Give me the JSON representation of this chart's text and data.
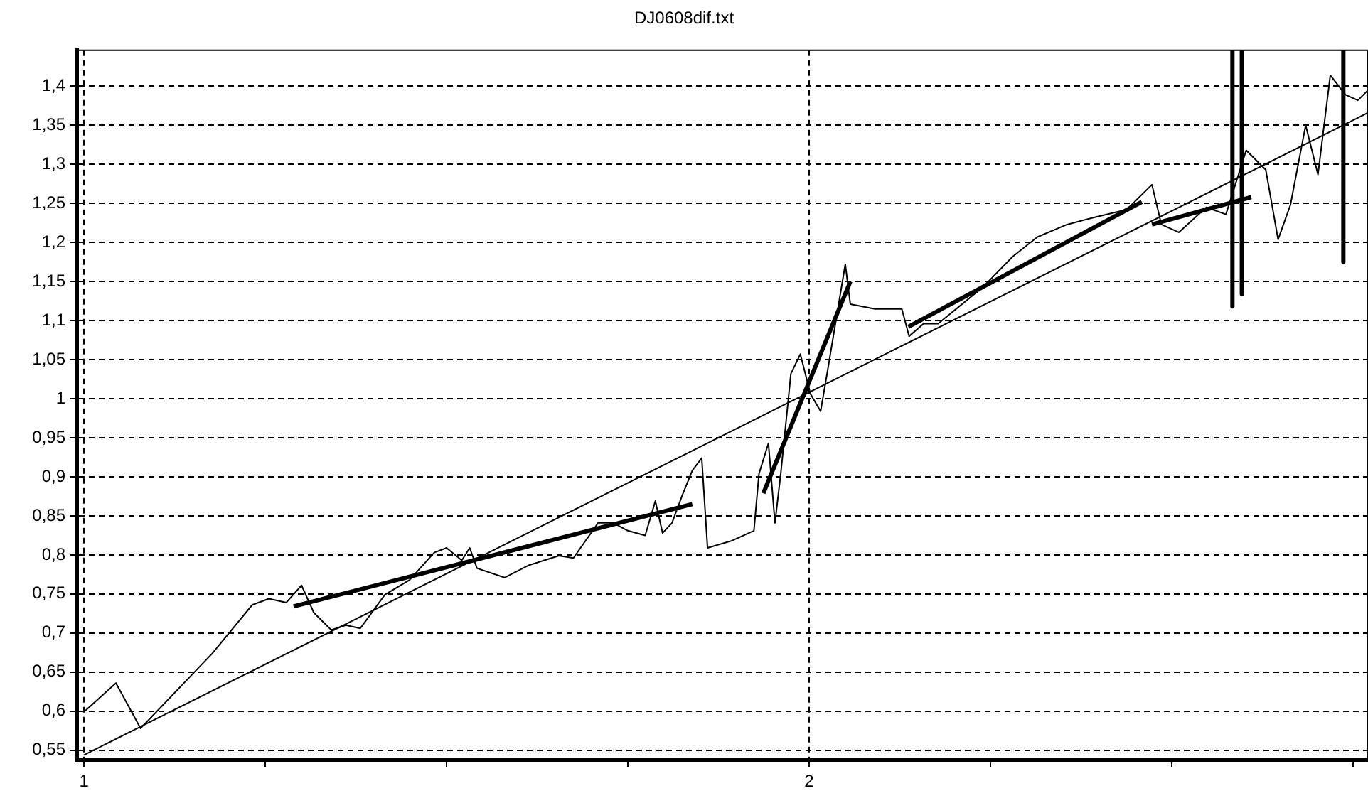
{
  "chart_data": {
    "type": "line",
    "title": "DJ0608dif.txt",
    "xlim": [
      0.99,
      2.771
    ],
    "ylim": [
      0.537,
      1.446
    ],
    "xticks": [
      1,
      {
        "value": 1.25,
        "label": null
      },
      {
        "value": 1.5,
        "label": null
      },
      {
        "value": 1.75,
        "label": null
      },
      2,
      {
        "value": 2.25,
        "label": null
      },
      {
        "value": 2.5,
        "label": null
      },
      {
        "value": 2.75,
        "label": null
      }
    ],
    "yticks": [
      {
        "value": 0.55,
        "label": "0,55"
      },
      {
        "value": 0.6,
        "label": "0,6"
      },
      {
        "value": 0.65,
        "label": "0,65"
      },
      {
        "value": 0.7,
        "label": "0,7"
      },
      {
        "value": 0.75,
        "label": "0,75"
      },
      {
        "value": 0.8,
        "label": "0,8"
      },
      {
        "value": 0.85,
        "label": "0,85"
      },
      {
        "value": 0.9,
        "label": "0,9"
      },
      {
        "value": 0.95,
        "label": "0,95"
      },
      {
        "value": 1,
        "label": "1"
      },
      {
        "value": 1.05,
        "label": "1,05"
      },
      {
        "value": 1.1,
        "label": "1,1"
      },
      {
        "value": 1.15,
        "label": "1,15"
      },
      {
        "value": 1.2,
        "label": "1,2"
      },
      {
        "value": 1.25,
        "label": "1,25"
      },
      {
        "value": 1.3,
        "label": "1,3"
      },
      {
        "value": 1.35,
        "label": "1,35"
      },
      {
        "value": 1.4,
        "label": "1,4"
      }
    ],
    "grid": true,
    "legend": false,
    "marker": "none",
    "line_style": "solid",
    "series": [
      {
        "color": "#000000",
        "x": [
          1,
          1.044,
          1.078,
          1.177,
          1.232,
          1.255,
          1.279,
          1.3,
          1.317,
          1.341,
          1.361,
          1.381,
          1.415,
          1.449,
          1.483,
          1.5,
          1.521,
          1.532,
          1.542,
          1.58,
          1.614,
          1.655,
          1.675,
          1.709,
          1.73,
          1.75,
          1.774,
          1.788,
          1.798,
          1.811,
          1.825,
          1.839,
          1.852,
          1.86,
          1.893,
          1.924,
          1.931,
          1.944,
          1.953,
          1.961,
          1.975,
          1.988,
          2.002,
          2.016,
          2.026,
          2.05,
          2.057,
          2.091,
          2.128,
          2.138,
          2.158,
          2.178,
          2.24,
          2.281,
          2.315,
          2.356,
          2.397,
          2.438,
          2.473,
          2.486,
          2.51,
          2.548,
          2.575,
          2.603,
          2.63,
          2.647,
          2.664,
          2.685,
          2.702,
          2.719,
          2.74,
          2.757,
          2.771
        ],
        "values": [
          0.599,
          0.636,
          0.578,
          0.674,
          0.736,
          0.744,
          0.739,
          0.761,
          0.726,
          0.704,
          0.71,
          0.706,
          0.749,
          0.768,
          0.803,
          0.809,
          0.793,
          0.809,
          0.783,
          0.771,
          0.787,
          0.799,
          0.796,
          0.841,
          0.841,
          0.831,
          0.825,
          0.869,
          0.828,
          0.841,
          0.876,
          0.908,
          0.924,
          0.809,
          0.818,
          0.831,
          0.904,
          0.943,
          0.841,
          0.904,
          1.032,
          1.057,
          1.006,
          0.984,
          1.038,
          1.172,
          1.121,
          1.115,
          1.115,
          1.08,
          1.096,
          1.096,
          1.143,
          1.182,
          1.207,
          1.223,
          1.233,
          1.242,
          1.274,
          1.223,
          1.213,
          1.245,
          1.236,
          1.318,
          1.293,
          1.204,
          1.248,
          1.35,
          1.287,
          1.414,
          1.389,
          1.382,
          1.395
        ]
      },
      {
        "color": "#000000",
        "x": [
          1,
          2.771
        ],
        "values": [
          0.544,
          1.366
        ]
      },
      {
        "color": "#000000",
        "x": [
          1.289,
          1.839
        ],
        "values": [
          0.734,
          0.865
        ]
      },
      {
        "color": "#000000",
        "x": [
          1.937,
          2.057
        ],
        "values": [
          0.879,
          1.15
        ]
      },
      {
        "color": "#000000",
        "x": [
          2.137,
          2.459
        ],
        "values": [
          1.092,
          1.252
        ]
      },
      {
        "color": "#000000",
        "x": [
          2.473,
          2.61
        ],
        "values": [
          1.223,
          1.258
        ]
      },
      {
        "color": "#000000",
        "x": [
          2.584,
          2.584
        ],
        "values": [
          1.446,
          1.118
        ]
      },
      {
        "color": "#000000",
        "x": [
          2.597,
          2.597
        ],
        "values": [
          1.446,
          1.134
        ]
      },
      {
        "color": "#000000",
        "x": [
          2.737,
          2.737
        ],
        "values": [
          1.446,
          1.175
        ]
      }
    ]
  }
}
